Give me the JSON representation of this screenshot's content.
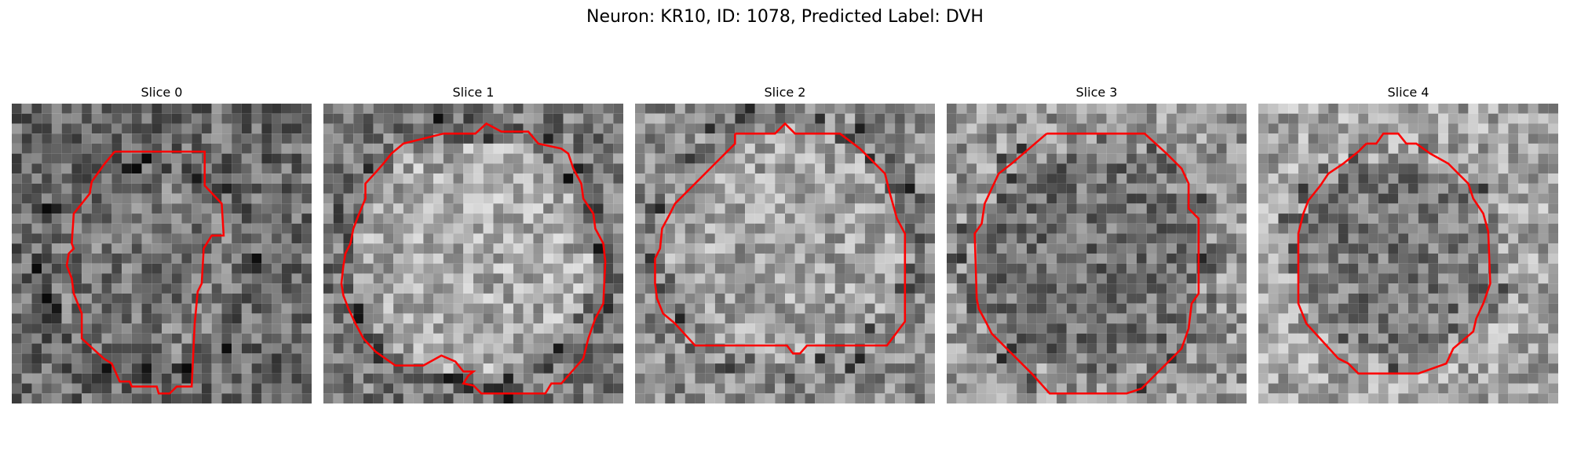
{
  "figure": {
    "title": "Neuron: KR10, ID: 1078, Predicted Label: DVH",
    "outline_color": "#ff0000"
  },
  "panels": [
    {
      "title": "Slice 0"
    },
    {
      "title": "Slice 1"
    },
    {
      "title": "Slice 2"
    },
    {
      "title": "Slice 3"
    },
    {
      "title": "Slice 4"
    }
  ]
}
